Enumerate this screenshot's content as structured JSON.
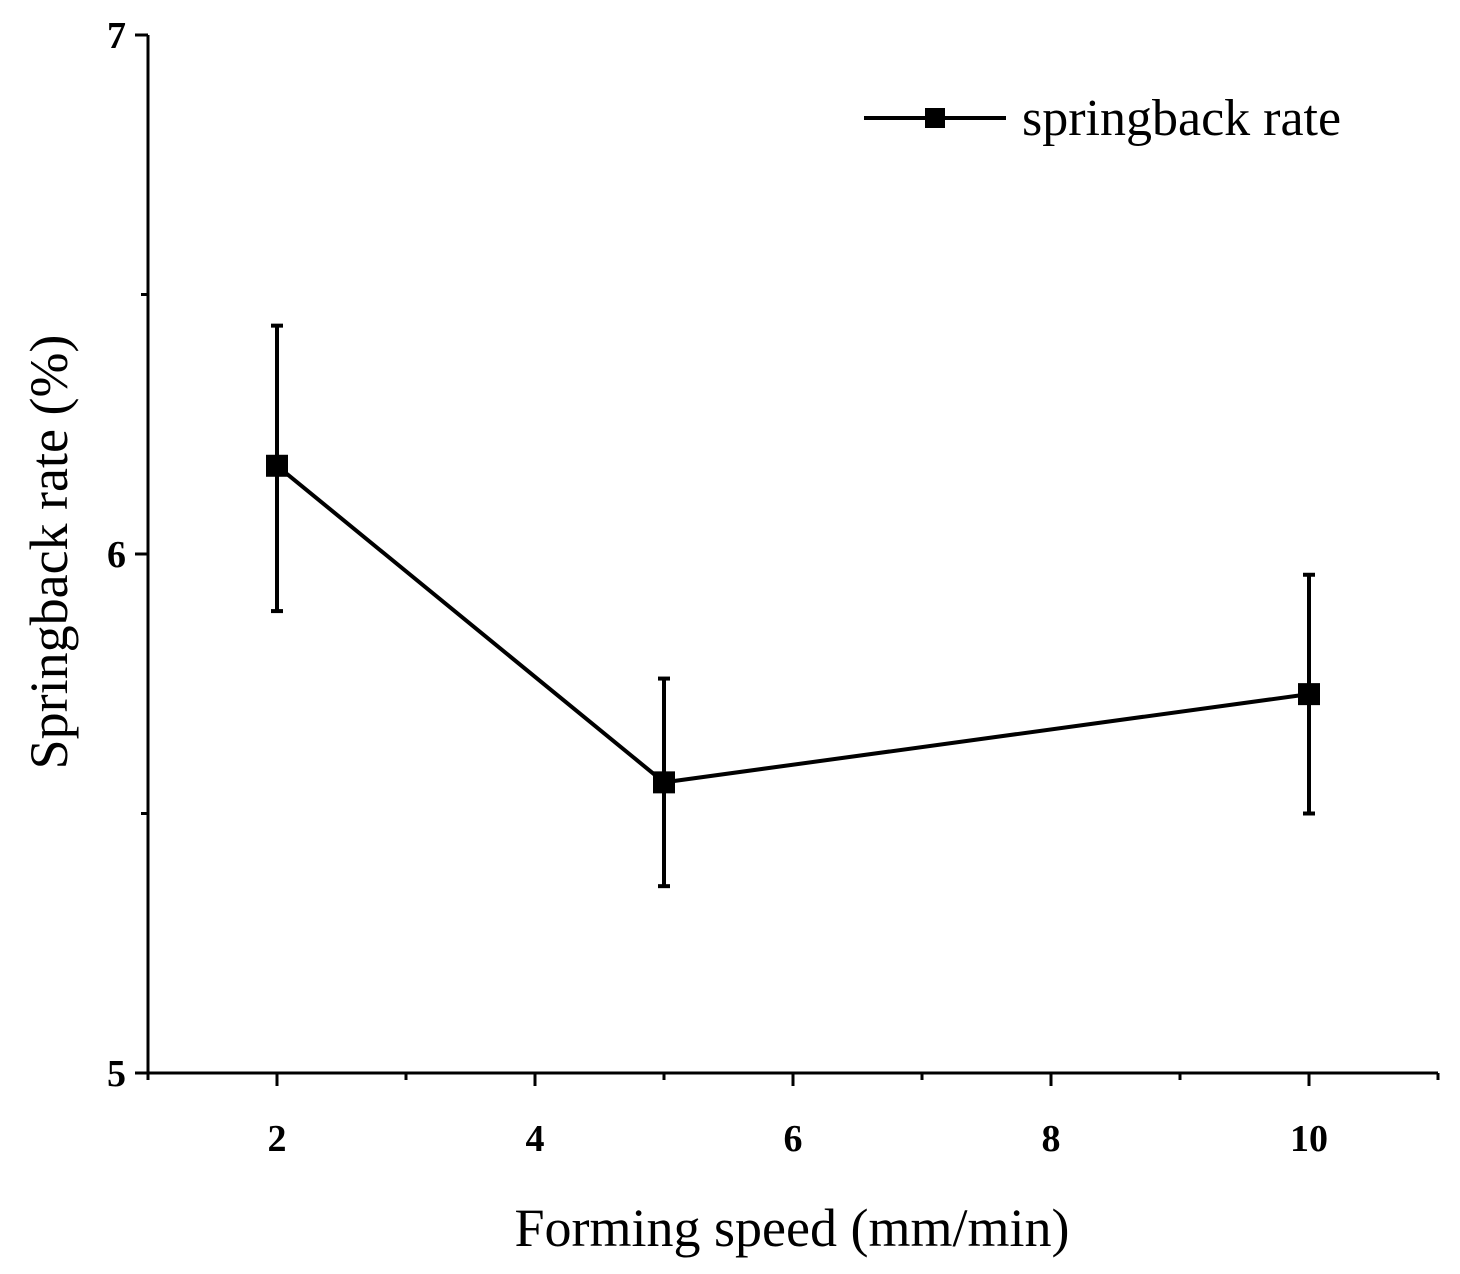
{
  "chart_data": {
    "type": "line",
    "title": "",
    "xlabel": "Forming speed (mm/min)",
    "ylabel": "Springback rate (%)",
    "xlim": [
      1,
      11
    ],
    "ylim": [
      5,
      7
    ],
    "x_ticks": [
      2,
      4,
      6,
      8,
      10
    ],
    "x_tick_labels": [
      "2",
      "4",
      "6",
      "8",
      "10"
    ],
    "x_minor_ticks": [
      1,
      3,
      5,
      7,
      9,
      11
    ],
    "y_ticks": [
      5,
      6,
      7
    ],
    "y_tick_labels": [
      "5",
      "6",
      "7"
    ],
    "y_minor_ticks": [
      5.5,
      6.5
    ],
    "grid": false,
    "legend_position": "top-right",
    "series": [
      {
        "name": "springback rate",
        "color": "#000000",
        "marker": "square",
        "x": [
          2,
          5,
          10
        ],
        "y": [
          6.17,
          5.56,
          5.73
        ],
        "error_low": [
          5.89,
          5.36,
          5.5
        ],
        "error_high": [
          6.44,
          5.76,
          5.96
        ]
      }
    ]
  }
}
